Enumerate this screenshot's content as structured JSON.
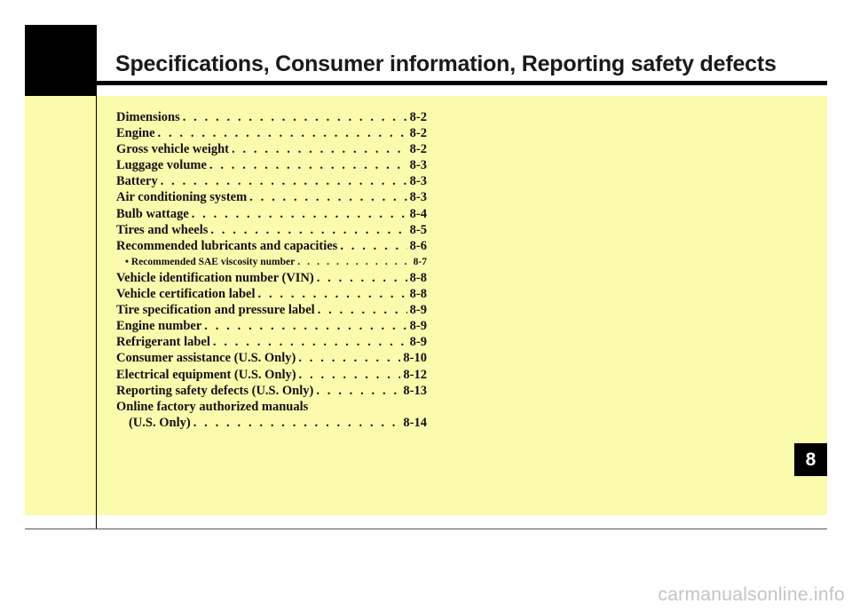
{
  "header": {
    "title": "Specifications, Consumer information, Reporting safety defects"
  },
  "chapter_number": "8",
  "toc": [
    {
      "label": "Dimensions",
      "page": "8-2"
    },
    {
      "label": "Engine",
      "page": "8-2"
    },
    {
      "label": "Gross vehicle weight",
      "page": "8-2"
    },
    {
      "label": "Luggage volume",
      "page": "8-3"
    },
    {
      "label": "Battery",
      "page": "8-3"
    },
    {
      "label": "Air conditioning system",
      "page": "8-3"
    },
    {
      "label": "Bulb wattage",
      "page": "8-4"
    },
    {
      "label": "Tires and wheels",
      "page": "8-5"
    },
    {
      "label": "Recommended lubricants and capacities",
      "page": "8-6"
    },
    {
      "label": "• Recommended SAE viscosity number",
      "page": "8-7"
    },
    {
      "label": "Vehicle identification number (VIN)",
      "page": "8-8"
    },
    {
      "label": "Vehicle certification label",
      "page": "8-8"
    },
    {
      "label": "Tire specification and pressure label",
      "page": "8-9"
    },
    {
      "label": "Engine number",
      "page": "8-9"
    },
    {
      "label": "Refrigerant label",
      "page": "8-9"
    },
    {
      "label": "Consumer assistance (U.S. Only)",
      "page": "8-10"
    },
    {
      "label": "Electrical equipment (U.S. Only)",
      "page": "8-12"
    },
    {
      "label": "Reporting safety defects (U.S. Only)",
      "page": "8-13"
    },
    {
      "label": "Online factory authorized manuals",
      "label_cont": "(U.S. Only)",
      "page": "8-14"
    }
  ],
  "watermark": "carmanualsonline.info"
}
